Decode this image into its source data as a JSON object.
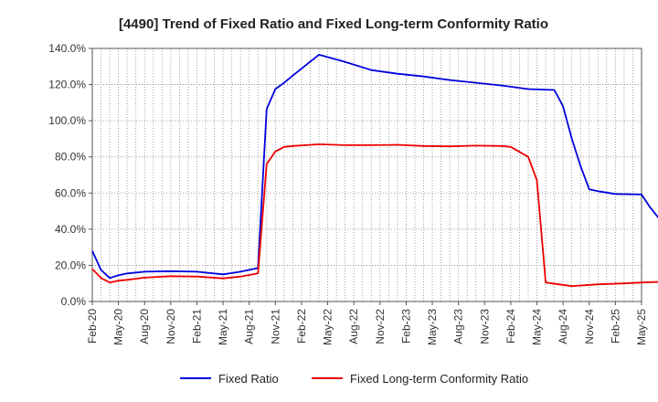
{
  "chart_data": {
    "type": "line",
    "title": "[4490]  Trend of Fixed Ratio and Fixed Long-term Conformity Ratio",
    "xlabel": "",
    "ylabel": "",
    "ylim": [
      0,
      140
    ],
    "grid": true,
    "legend_position": "bottom",
    "x_ticks": [
      "Feb-20",
      "May-20",
      "Aug-20",
      "Nov-20",
      "Feb-21",
      "May-21",
      "Aug-21",
      "Nov-21",
      "Feb-22",
      "May-22",
      "Aug-22",
      "Nov-22",
      "Feb-23",
      "May-23",
      "Aug-23",
      "Nov-23",
      "Feb-24",
      "May-24",
      "Aug-24",
      "Nov-24",
      "Feb-25",
      "May-25"
    ],
    "y_ticks": [
      "0.0%",
      "20.0%",
      "40.0%",
      "60.0%",
      "80.0%",
      "100.0%",
      "120.0%",
      "140.0%"
    ],
    "series": [
      {
        "name": "Fixed Ratio",
        "color": "#0000dd",
        "points": [
          [
            0,
            28
          ],
          [
            1,
            17.5
          ],
          [
            2,
            13
          ],
          [
            3,
            14.5
          ],
          [
            4,
            15.5
          ],
          [
            6,
            16.5
          ],
          [
            9,
            16.8
          ],
          [
            12,
            16.5
          ],
          [
            15,
            15
          ],
          [
            17,
            16.5
          ],
          [
            19,
            18.5
          ],
          [
            20,
            106.5
          ],
          [
            21,
            117.5
          ],
          [
            22,
            121
          ],
          [
            23,
            125
          ],
          [
            26,
            136.5
          ],
          [
            29,
            132.5
          ],
          [
            32,
            128
          ],
          [
            35,
            126
          ],
          [
            38,
            124.5
          ],
          [
            41,
            122.5
          ],
          [
            44,
            121
          ],
          [
            47,
            119.5
          ],
          [
            50,
            117.5
          ],
          [
            53,
            117
          ],
          [
            54,
            108
          ],
          [
            55,
            90
          ],
          [
            56,
            75
          ],
          [
            57,
            62
          ],
          [
            58,
            61
          ],
          [
            60,
            59.5
          ],
          [
            63,
            59.2
          ],
          [
            64,
            52
          ],
          [
            65,
            46
          ],
          [
            66,
            41.5
          ]
        ]
      },
      {
        "name": "Fixed Long-term Conformity Ratio",
        "color": "#ee0000",
        "points": [
          [
            0,
            18
          ],
          [
            1,
            13
          ],
          [
            2,
            10.5
          ],
          [
            3,
            11.5
          ],
          [
            4,
            12
          ],
          [
            6,
            13.2
          ],
          [
            9,
            14
          ],
          [
            12,
            13.8
          ],
          [
            15,
            12.8
          ],
          [
            17,
            13.8
          ],
          [
            19,
            15.5
          ],
          [
            20,
            76
          ],
          [
            21,
            83
          ],
          [
            22,
            85.5
          ],
          [
            23,
            86
          ],
          [
            26,
            87
          ],
          [
            29,
            86.5
          ],
          [
            32,
            86.5
          ],
          [
            35,
            86.7
          ],
          [
            38,
            86
          ],
          [
            41,
            85.8
          ],
          [
            44,
            86.2
          ],
          [
            47,
            86
          ],
          [
            48,
            85.5
          ],
          [
            50,
            80
          ],
          [
            51,
            67
          ],
          [
            52,
            10.5
          ],
          [
            55,
            8.5
          ],
          [
            58,
            9.5
          ],
          [
            61,
            10
          ],
          [
            63,
            10.5
          ],
          [
            66,
            11
          ]
        ]
      }
    ]
  }
}
